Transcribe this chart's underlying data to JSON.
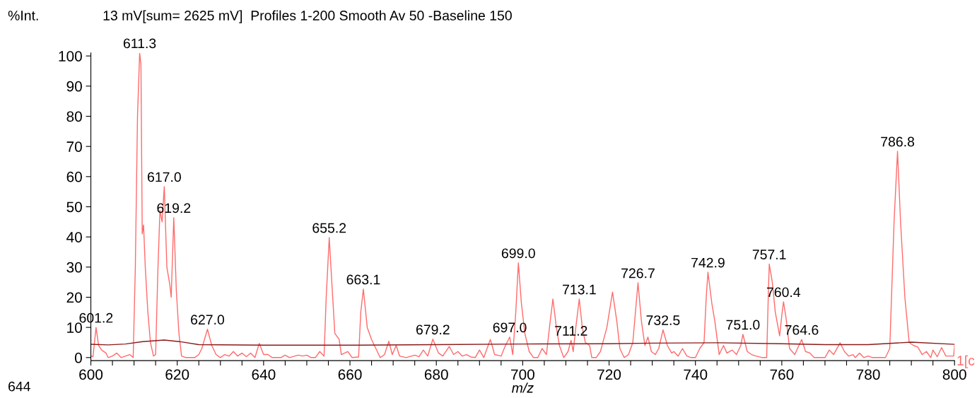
{
  "chart_data": {
    "type": "line",
    "title": "13 mV[sum= 2625 mV]  Profiles 1-200 Smooth Av 50 -Baseline 150",
    "ylabel": "%Int.",
    "xlabel": "m/z",
    "xlim": [
      600,
      800
    ],
    "ylim": [
      -1,
      101
    ],
    "xticks": [
      600,
      {
        "value": 605,
        "label": null
      },
      {
        "value": 610,
        "label": null
      },
      {
        "value": 615,
        "label": null
      },
      620,
      {
        "value": 625,
        "label": null
      },
      {
        "value": 630,
        "label": null
      },
      {
        "value": 635,
        "label": null
      },
      640,
      {
        "value": 645,
        "label": null
      },
      {
        "value": 650,
        "label": null
      },
      {
        "value": 655,
        "label": null
      },
      660,
      {
        "value": 665,
        "label": null
      },
      {
        "value": 670,
        "label": null
      },
      {
        "value": 675,
        "label": null
      },
      680,
      {
        "value": 685,
        "label": null
      },
      {
        "value": 690,
        "label": null
      },
      {
        "value": 695,
        "label": null
      },
      700,
      {
        "value": 705,
        "label": null
      },
      {
        "value": 710,
        "label": null
      },
      {
        "value": 715,
        "label": null
      },
      720,
      {
        "value": 725,
        "label": null
      },
      {
        "value": 730,
        "label": null
      },
      {
        "value": 735,
        "label": null
      },
      740,
      {
        "value": 745,
        "label": null
      },
      {
        "value": 750,
        "label": null
      },
      {
        "value": 755,
        "label": null
      },
      760,
      {
        "value": 765,
        "label": null
      },
      {
        "value": 770,
        "label": null
      },
      {
        "value": 775,
        "label": null
      },
      780,
      {
        "value": 785,
        "label": null
      },
      {
        "value": 790,
        "label": null
      },
      {
        "value": 795,
        "label": null
      },
      800
    ],
    "yticks": [
      0,
      10,
      20,
      30,
      40,
      50,
      60,
      70,
      80,
      90,
      100
    ],
    "grid": false,
    "legend": false,
    "series": [
      {
        "color": "#ff6b6b",
        "x": [
          600,
          600.5,
          601.2,
          601.8,
          602.5,
          603.5,
          604,
          605,
          606,
          607,
          609,
          609.8,
          610.3,
          610.8,
          611.3,
          611.6,
          611.9,
          612.2,
          612.6,
          613.2,
          613.8,
          614.5,
          615,
          615.5,
          616,
          616.5,
          617,
          617.6,
          618.3,
          618.6,
          619.2,
          619.8,
          620.4,
          621,
          622,
          624,
          625,
          625.7,
          627,
          628,
          629,
          630,
          631,
          632,
          633,
          634,
          635,
          636,
          637,
          638,
          639,
          640,
          641,
          642,
          644,
          645,
          646,
          648,
          649,
          650,
          651,
          652,
          653,
          654,
          654.5,
          655.2,
          656,
          656.5,
          657.5,
          658,
          659.5,
          660.5,
          662,
          662.5,
          663.1,
          664,
          665,
          666,
          667,
          668,
          669,
          669.8,
          670.7,
          671.5,
          673,
          675,
          676,
          677,
          678,
          679.2,
          680.5,
          681.5,
          683,
          684,
          685,
          686,
          687,
          688,
          689,
          690,
          691,
          692.5,
          693.5,
          695,
          696,
          697,
          697.7,
          698.4,
          699,
          699.7,
          700.5,
          701.5,
          702.5,
          703.5,
          704.5,
          705.5,
          706.2,
          707,
          707.8,
          708.5,
          709.5,
          710.5,
          711.2,
          711.7,
          712.3,
          713.1,
          713.8,
          714.5,
          715.5,
          716,
          717,
          718,
          719.5,
          720.8,
          721.8,
          722.5,
          723.5,
          724.5,
          725.5,
          726.7,
          727.5,
          728.3,
          729,
          729.8,
          730.7,
          731.5,
          732.5,
          733.5,
          734.5,
          735,
          736,
          737,
          738,
          739,
          740,
          741,
          742,
          742.5,
          742.9,
          743.8,
          744.5,
          745.5,
          746.5,
          747.3,
          748.5,
          749.5,
          750.5,
          751,
          752,
          753,
          754,
          755.5,
          756.5,
          756.9,
          757.1,
          757.8,
          758.5,
          759.5,
          760,
          760.4,
          761,
          761.8,
          763,
          764.6,
          765.5,
          766.5,
          767.5,
          770,
          771,
          772,
          773.5,
          774.5,
          775.5,
          776.5,
          777,
          778,
          779,
          780,
          781,
          784,
          785,
          786,
          786.8,
          787.5,
          788.5,
          789.5,
          790.5,
          791.5,
          792.5,
          793.5,
          794.5,
          795,
          796,
          797,
          798,
          799.8,
          800
        ],
        "values": [
          0.5,
          0.3,
          10,
          4,
          2.5,
          1.5,
          0,
          0.5,
          1.5,
          0,
          1,
          0,
          30,
          80,
          101,
          97,
          41,
          44,
          30,
          15,
          5,
          0.5,
          1,
          28,
          48.8,
          45,
          56.7,
          30,
          24,
          20,
          46.4,
          22,
          8,
          0.5,
          0,
          0,
          1,
          3,
          9.4,
          4,
          1,
          0,
          1,
          0.5,
          2,
          0.5,
          1.5,
          0.3,
          1.5,
          0,
          4.7,
          1,
          1,
          0,
          0,
          0.8,
          0,
          0.8,
          0.5,
          0.8,
          0,
          0,
          2,
          0.5,
          20,
          39.8,
          20,
          8,
          6,
          1,
          2,
          0,
          0.2,
          15,
          22.7,
          10,
          6,
          3,
          0,
          1,
          5.4,
          1,
          4,
          0.5,
          0,
          0.8,
          0.3,
          2.5,
          0.5,
          6.1,
          1.5,
          0.5,
          3.7,
          1,
          2,
          0.5,
          1,
          0.2,
          0,
          2.5,
          0,
          6,
          1,
          0.5,
          4,
          6.8,
          1,
          15,
          31.4,
          18,
          8,
          2,
          0,
          0,
          3,
          1,
          10,
          19.4,
          10,
          4,
          0,
          2,
          5.7,
          2,
          10,
          19.4,
          10,
          5,
          4,
          0,
          0,
          2,
          10,
          21.7,
          12,
          3,
          0,
          1,
          5,
          24.8,
          12,
          4,
          6.8,
          2,
          1,
          3,
          9.2,
          4,
          1.5,
          2,
          0.5,
          3,
          0.5,
          0,
          0,
          3,
          5,
          20,
          28.3,
          18,
          12,
          1,
          4,
          1.5,
          2.5,
          1,
          4,
          7.7,
          2,
          1,
          0.5,
          0,
          0,
          22,
          31,
          25,
          15,
          7.2,
          14,
          18.5,
          13,
          3,
          1,
          6,
          2,
          1.5,
          0,
          0,
          2.5,
          1,
          4.9,
          2,
          0.5,
          1,
          0,
          1.5,
          0,
          0.5,
          0,
          0,
          3,
          45,
          68.4,
          45,
          20,
          5,
          4,
          3.5,
          1,
          2,
          0,
          2.5,
          0.3,
          3.3,
          0.5,
          0.5,
          4
        ]
      },
      {
        "color": "#8b1a1a",
        "x": [
          600,
          604,
          608,
          612,
          617,
          621,
          625,
          640,
          660,
          680,
          700,
          720,
          730,
          745,
          760,
          770,
          780,
          790,
          800
        ],
        "values": [
          4.4,
          4.2,
          4.5,
          5.3,
          5.8,
          5.2,
          4.3,
          4.1,
          4.1,
          4.3,
          4.5,
          4.6,
          4.8,
          4.9,
          4.6,
          4.3,
          4.3,
          5.1,
          4.4
        ]
      }
    ],
    "annotations": [
      {
        "text": "601.2",
        "x": 601.2,
        "y": 10
      },
      {
        "text": "611.3",
        "x": 611.3,
        "y": 101
      },
      {
        "text": "617.0",
        "x": 617,
        "y": 56.7
      },
      {
        "text": "619.2",
        "x": 619.2,
        "y": 46.4
      },
      {
        "text": "627.0",
        "x": 627,
        "y": 9.4
      },
      {
        "text": "655.2",
        "x": 655.2,
        "y": 39.8
      },
      {
        "text": "663.1",
        "x": 663.1,
        "y": 22.7
      },
      {
        "text": "679.2",
        "x": 679.2,
        "y": 6.1
      },
      {
        "text": "697.0",
        "x": 697,
        "y": 6.8
      },
      {
        "text": "699.0",
        "x": 699,
        "y": 31.4
      },
      {
        "text": "711.2",
        "x": 711.2,
        "y": 5.7
      },
      {
        "text": "713.1",
        "x": 713.1,
        "y": 19.4
      },
      {
        "text": "726.7",
        "x": 726.7,
        "y": 24.8
      },
      {
        "text": "732.5",
        "x": 732.5,
        "y": 9.2
      },
      {
        "text": "742.9",
        "x": 742.9,
        "y": 28.3
      },
      {
        "text": "751.0",
        "x": 751,
        "y": 7.7
      },
      {
        "text": "757.1",
        "x": 757.1,
        "y": 31
      },
      {
        "text": "760.4",
        "x": 760.4,
        "y": 18.5
      },
      {
        "text": "764.6",
        "x": 764.6,
        "y": 6
      },
      {
        "text": "786.8",
        "x": 786.8,
        "y": 68.4
      },
      "1[c",
      "644"
    ]
  }
}
